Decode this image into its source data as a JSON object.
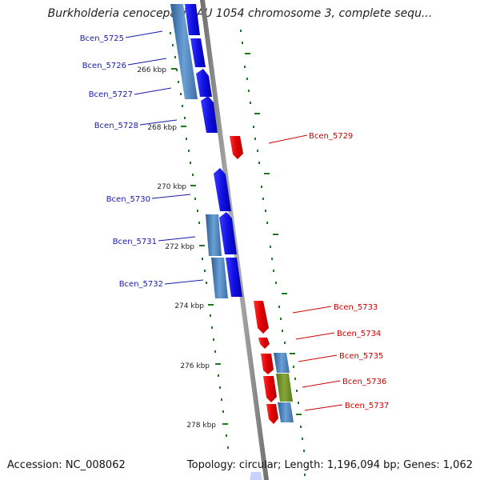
{
  "map": {
    "title": "Burkholderia cenocepacia AU 1054 chromosome 3, complete sequ...",
    "accession_label": "Accession: NC_008062",
    "topology": "Topology: circular; Length: 1,196,094 bp; Genes: 1,062"
  },
  "scale": {
    "ticks": [
      "266 kbp",
      "268 kbp",
      "270 kbp",
      "272 kbp",
      "274 kbp",
      "276 kbp",
      "278 kbp"
    ]
  },
  "genes": {
    "forward": [
      "Bcen_5725",
      "Bcen_5726",
      "Bcen_5727",
      "Bcen_5728",
      "Bcen_5730",
      "Bcen_5731",
      "Bcen_5732"
    ],
    "reverse": [
      "Bcen_5729",
      "Bcen_5733",
      "Bcen_5734",
      "Bcen_5735",
      "Bcen_5736",
      "Bcen_5737"
    ]
  },
  "colors": {
    "forward_gene": "#1f1fd6",
    "forward_label": "#1a1aa8",
    "reverse_gene": "#e00000",
    "reverse_label": "#cc0000",
    "cds_feature": "#4f86bf",
    "misc_feature": "#6f8f2a",
    "backbone": "#8a8a8a",
    "tick": "#1f7a1f"
  }
}
